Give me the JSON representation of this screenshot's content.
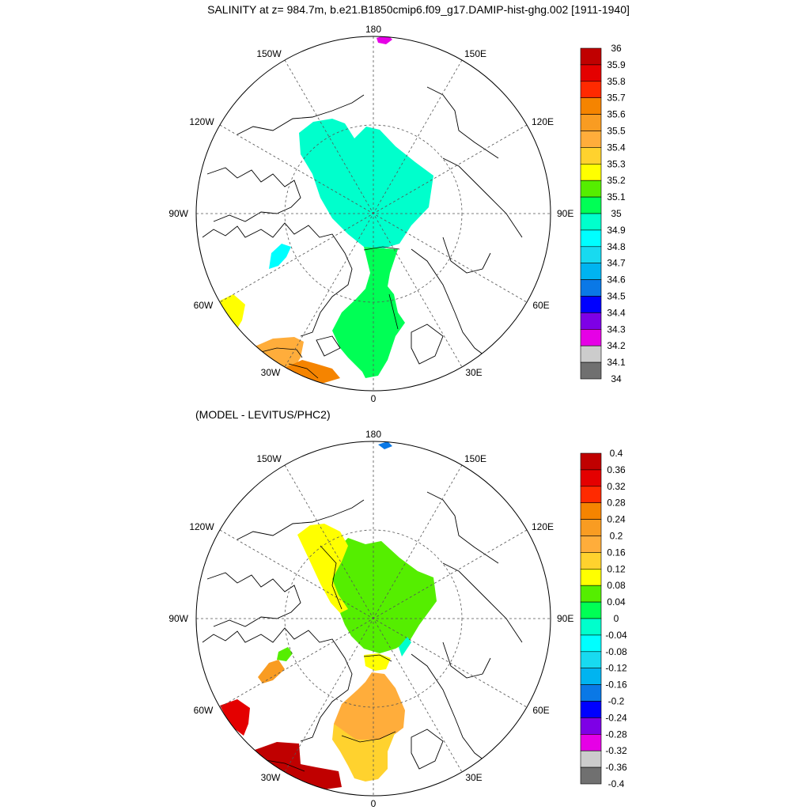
{
  "title": "SALINITY at z= 984.7m, b.e21.B1850cmip6.f09_g17.DAMIP-hist-ghg.002 [1911-1940]",
  "subtitle": "(MODEL - LEVITUS/PHC2)",
  "map_labels": {
    "lon_180": "180",
    "lon_150W": "150W",
    "lon_150E": "150E",
    "lon_120W": "120W",
    "lon_120E": "120E",
    "lon_90W": "90W",
    "lon_90E": "90E",
    "lon_60W": "60W",
    "lon_60E": "60E",
    "lon_30W": "30W",
    "lon_30E": "30E",
    "lon_0": "0"
  },
  "colorbar_top": {
    "labels": [
      "36",
      "35.9",
      "35.8",
      "35.7",
      "35.6",
      "35.5",
      "35.4",
      "35.3",
      "35.2",
      "35.1",
      "35",
      "34.9",
      "34.8",
      "34.7",
      "34.6",
      "34.5",
      "34.4",
      "34.3",
      "34.2",
      "34.1",
      "34"
    ],
    "colors": [
      "#c00000",
      "#e40000",
      "#ff2a00",
      "#f58400",
      "#f99c22",
      "#ffad3b",
      "#ffd22e",
      "#ffff00",
      "#55ee00",
      "#00ff55",
      "#00ffcc",
      "#00ffff",
      "#18daf0",
      "#00b4f0",
      "#0a78e6",
      "#0000ff",
      "#7e00e6",
      "#e600e6",
      "#cccccc",
      "#707070"
    ]
  },
  "colorbar_bottom": {
    "labels": [
      "0.4",
      "0.36",
      "0.32",
      "0.28",
      "0.24",
      "0.2",
      "0.16",
      "0.12",
      "0.08",
      "0.04",
      "0",
      "-0.04",
      "-0.08",
      "-0.12",
      "-0.16",
      "-0.2",
      "-0.24",
      "-0.28",
      "-0.32",
      "-0.36",
      "-0.4"
    ],
    "colors": [
      "#c00000",
      "#e40000",
      "#ff2a00",
      "#f58400",
      "#f99c22",
      "#ffad3b",
      "#ffd22e",
      "#ffff00",
      "#55ee00",
      "#00ff55",
      "#00ffcc",
      "#00ffff",
      "#18daf0",
      "#00b4f0",
      "#0a78e6",
      "#0000ff",
      "#7e00e6",
      "#e600e6",
      "#cccccc",
      "#707070"
    ]
  },
  "fill_colors": {
    "top_central_basin": "#00ffcc",
    "top_fram_strait": "#00ff55",
    "top_baffin": "#00ffff",
    "top_labrador": "#ffff00",
    "top_irminger": "#ffad3b",
    "top_iceland_basin": "#f58400",
    "top_pacific_spot": "#e600e6",
    "bot_central_basin": "#55ee00",
    "bot_yellow_patch": "#ffff00",
    "bot_fram_yellow": "#ffff00",
    "bot_nordic": "#ffad3b",
    "bot_norwegian": "#ffd22e",
    "bot_baffin_green": "#55ee00",
    "bot_baffin_orange": "#f99c22",
    "bot_labrador": "#e40000",
    "bot_irminger": "#c00000",
    "bot_pacific_spot": "#0a78e6",
    "bot_cyan_edge": "#00ffcc"
  }
}
